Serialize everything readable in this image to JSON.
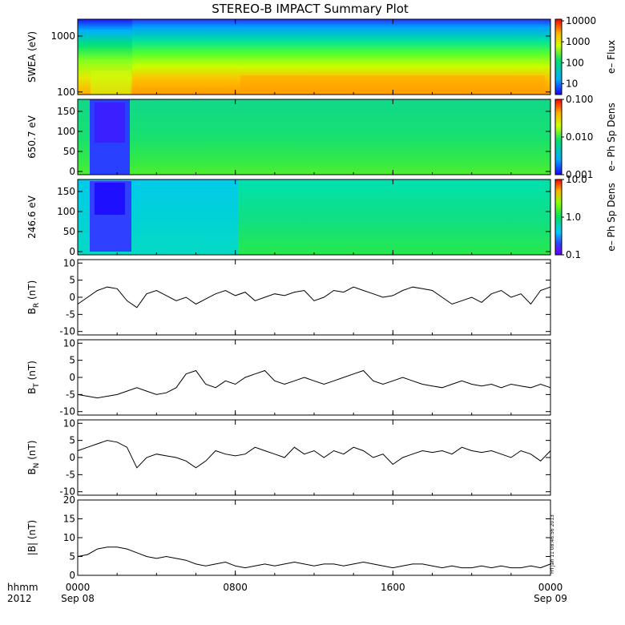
{
  "title": "STEREO-B IMPACT Summary Plot",
  "footer": {
    "axis_label": "hhmm",
    "year": "2012",
    "timestamp": "Fri Jan 11 08:46:56 2013"
  },
  "colors": {
    "line": "#000000",
    "background": "#ffffff"
  },
  "x_axis": {
    "range_hours": [
      0,
      24
    ],
    "ticks": [
      {
        "hour": 0,
        "label": "0000",
        "sublabel": "Sep 08"
      },
      {
        "hour": 8,
        "label": "0800",
        "sublabel": ""
      },
      {
        "hour": 16,
        "label": "1600",
        "sublabel": ""
      },
      {
        "hour": 24,
        "label": "0000",
        "sublabel": "Sep 09"
      }
    ]
  },
  "spectrograms": [
    {
      "ylabel": "SWEA (eV)",
      "yscale": "log",
      "ylim": [
        90,
        2000
      ],
      "yticks": [
        {
          "value": 100,
          "label": "100"
        },
        {
          "value": 1000,
          "label": "1000"
        }
      ],
      "colorbar": {
        "label": "e– Flux",
        "scale": "log",
        "range": [
          3,
          12000
        ],
        "ticks": [
          {
            "value": 10,
            "label": "10"
          },
          {
            "value": 100,
            "label": "100"
          },
          {
            "value": 1000,
            "label": "1000"
          },
          {
            "value": 10000,
            "label": "10000"
          }
        ]
      }
    },
    {
      "ylabel": "650.7 eV",
      "yscale": "linear",
      "ylim": [
        -8,
        180
      ],
      "yticks": [
        {
          "value": 0,
          "label": "0"
        },
        {
          "value": 50,
          "label": "50"
        },
        {
          "value": 100,
          "label": "100"
        },
        {
          "value": 150,
          "label": "150"
        }
      ],
      "colorbar": {
        "label": "e– Ph Sp Dens",
        "scale": "log",
        "range": [
          0.001,
          0.1
        ],
        "ticks": [
          {
            "value": 0.001,
            "label": "0.001"
          },
          {
            "value": 0.01,
            "label": "0.010"
          },
          {
            "value": 0.1,
            "label": "0.100"
          }
        ]
      }
    },
    {
      "ylabel": "246.6 eV",
      "yscale": "linear",
      "ylim": [
        -8,
        180
      ],
      "yticks": [
        {
          "value": 0,
          "label": "0"
        },
        {
          "value": 50,
          "label": "50"
        },
        {
          "value": 100,
          "label": "100"
        },
        {
          "value": 150,
          "label": "150"
        }
      ],
      "colorbar": {
        "label": "e– Ph Sp Dens",
        "scale": "log",
        "range": [
          0.1,
          10
        ],
        "ticks": [
          {
            "value": 0.1,
            "label": "0.1"
          },
          {
            "value": 1,
            "label": "1.0"
          },
          {
            "value": 10,
            "label": "10.0"
          }
        ]
      }
    }
  ],
  "chart_data": [
    {
      "type": "line",
      "ylabel_main": "B",
      "ylabel_sub": "R",
      "ylabel_unit": " (nT)",
      "ylim": [
        -11,
        11
      ],
      "yticks": [
        -10,
        -5,
        0,
        5,
        10
      ],
      "x_hours": [
        0,
        0.5,
        1,
        1.5,
        2,
        2.5,
        3,
        3.5,
        4,
        4.5,
        5,
        5.5,
        6,
        6.5,
        7,
        7.5,
        8,
        8.5,
        9,
        9.5,
        10,
        10.5,
        11,
        11.5,
        12,
        12.5,
        13,
        13.5,
        14,
        14.5,
        15,
        15.5,
        16,
        16.5,
        17,
        17.5,
        18,
        18.5,
        19,
        19.5,
        20,
        20.5,
        21,
        21.5,
        22,
        22.5,
        23,
        23.5,
        24
      ],
      "series": [
        {
          "values": [
            -2,
            0,
            2,
            3,
            2.5,
            -1,
            -3,
            1,
            2,
            0.5,
            -1,
            0,
            -2,
            -0.5,
            1,
            2,
            0.5,
            1.5,
            -1,
            0,
            1,
            0.5,
            1.5,
            2,
            -1,
            0,
            2,
            1.5,
            3,
            2,
            1,
            0,
            0.5,
            2,
            3,
            2.5,
            2,
            0,
            -2,
            -1,
            0,
            -1.5,
            1,
            2,
            0,
            1,
            -2,
            2,
            3
          ]
        }
      ]
    },
    {
      "type": "line",
      "ylabel_main": "B",
      "ylabel_sub": "T",
      "ylabel_unit": " (nT)",
      "ylim": [
        -11,
        11
      ],
      "yticks": [
        -10,
        -5,
        0,
        5,
        10
      ],
      "x_hours": [
        0,
        0.5,
        1,
        1.5,
        2,
        2.5,
        3,
        3.5,
        4,
        4.5,
        5,
        5.5,
        6,
        6.5,
        7,
        7.5,
        8,
        8.5,
        9,
        9.5,
        10,
        10.5,
        11,
        11.5,
        12,
        12.5,
        13,
        13.5,
        14,
        14.5,
        15,
        15.5,
        16,
        16.5,
        17,
        17.5,
        18,
        18.5,
        19,
        19.5,
        20,
        20.5,
        21,
        21.5,
        22,
        22.5,
        23,
        23.5,
        24
      ],
      "series": [
        {
          "values": [
            -5,
            -5.5,
            -6,
            -5.5,
            -5,
            -4,
            -3,
            -4,
            -5,
            -4.5,
            -3,
            1,
            2,
            -2,
            -3,
            -1,
            -2,
            0,
            1,
            2,
            -1,
            -2,
            -1,
            0,
            -1,
            -2,
            -1,
            0,
            1,
            2,
            -1,
            -2,
            -1,
            0,
            -1,
            -2,
            -2.5,
            -3,
            -2,
            -1,
            -2,
            -2.5,
            -2,
            -3,
            -2,
            -2.5,
            -3,
            -2,
            -3
          ]
        }
      ]
    },
    {
      "type": "line",
      "ylabel_main": "B",
      "ylabel_sub": "N",
      "ylabel_unit": " (nT)",
      "ylim": [
        -11,
        11
      ],
      "yticks": [
        -10,
        -5,
        0,
        5,
        10
      ],
      "x_hours": [
        0,
        0.5,
        1,
        1.5,
        2,
        2.5,
        3,
        3.5,
        4,
        4.5,
        5,
        5.5,
        6,
        6.5,
        7,
        7.5,
        8,
        8.5,
        9,
        9.5,
        10,
        10.5,
        11,
        11.5,
        12,
        12.5,
        13,
        13.5,
        14,
        14.5,
        15,
        15.5,
        16,
        16.5,
        17,
        17.5,
        18,
        18.5,
        19,
        19.5,
        20,
        20.5,
        21,
        21.5,
        22,
        22.5,
        23,
        23.5,
        24
      ],
      "series": [
        {
          "values": [
            2,
            3,
            4,
            5,
            4.5,
            3,
            -3,
            0,
            1,
            0.5,
            0,
            -1,
            -3,
            -1,
            2,
            1,
            0.5,
            1,
            3,
            2,
            1,
            0,
            3,
            1,
            2,
            0,
            2,
            1,
            3,
            2,
            0,
            1,
            -2,
            0,
            1,
            2,
            1.5,
            2,
            1,
            3,
            2,
            1.5,
            2,
            1,
            0,
            2,
            1,
            -1,
            2
          ]
        }
      ]
    },
    {
      "type": "line",
      "ylabel_main": "|B|",
      "ylabel_sub": "",
      "ylabel_unit": " (nT)",
      "ylim": [
        0,
        20
      ],
      "yticks": [
        0,
        5,
        10,
        15,
        20
      ],
      "x_hours": [
        0,
        0.5,
        1,
        1.5,
        2,
        2.5,
        3,
        3.5,
        4,
        4.5,
        5,
        5.5,
        6,
        6.5,
        7,
        7.5,
        8,
        8.5,
        9,
        9.5,
        10,
        10.5,
        11,
        11.5,
        12,
        12.5,
        13,
        13.5,
        14,
        14.5,
        15,
        15.5,
        16,
        16.5,
        17,
        17.5,
        18,
        18.5,
        19,
        19.5,
        20,
        20.5,
        21,
        21.5,
        22,
        22.5,
        23,
        23.5,
        24
      ],
      "series": [
        {
          "values": [
            5,
            5.5,
            7,
            7.5,
            7.5,
            7,
            6,
            5,
            4.5,
            5,
            4.5,
            4,
            3,
            2.5,
            3,
            3.5,
            2.5,
            2,
            2.5,
            3,
            2.5,
            3,
            3.5,
            3,
            2.5,
            3,
            3,
            2.5,
            3,
            3.5,
            3,
            2.5,
            2,
            2.5,
            3,
            3,
            2.5,
            2,
            2.5,
            2,
            2,
            2.5,
            2,
            2.5,
            2,
            2,
            2.5,
            2,
            3
          ]
        }
      ]
    }
  ]
}
